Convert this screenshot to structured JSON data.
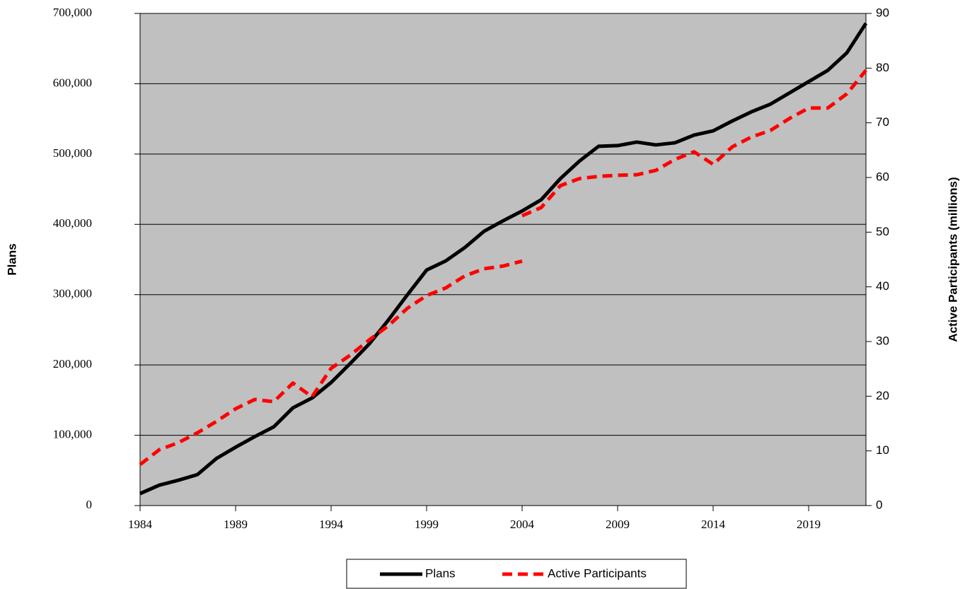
{
  "chart_data": {
    "type": "line",
    "y_label": "Plans",
    "y2_label": "Active Participants (millions)",
    "x": [
      1984,
      1985,
      1986,
      1987,
      1988,
      1989,
      1990,
      1991,
      1992,
      1993,
      1994,
      1995,
      1996,
      1997,
      1998,
      1999,
      2000,
      2001,
      2002,
      2003,
      2004,
      2005,
      2006,
      2007,
      2008,
      2009,
      2010,
      2011,
      2012,
      2013,
      2014,
      2015,
      2016,
      2017,
      2018,
      2019,
      2020,
      2021,
      2022
    ],
    "series": [
      {
        "name": "Plans",
        "color": "#000000",
        "dashed": false,
        "axis": "y",
        "values": [
          17000,
          29000,
          36000,
          44000,
          67000,
          83000,
          98000,
          112000,
          139000,
          153000,
          175000,
          202000,
          230000,
          264000,
          300000,
          335000,
          348000,
          367000,
          390000,
          405000,
          419000,
          435000,
          465000,
          490000,
          511000,
          512000,
          517000,
          513000,
          516000,
          527000,
          533000,
          547000,
          560000,
          571000,
          587000,
          603000,
          619000,
          644000,
          686000
        ]
      },
      {
        "name": "Active Participants",
        "color": "#ff0000",
        "dashed": true,
        "axis": "y2",
        "x": [
          1984,
          1985,
          1986,
          1987,
          1988,
          1989,
          1990,
          1991,
          1992,
          1993,
          1994,
          1995,
          1996,
          1997,
          1998,
          1999,
          2000,
          2001,
          2002,
          2003,
          2004,
          null,
          2004,
          2005,
          2006,
          2007,
          2008,
          2009,
          2010,
          2011,
          2012,
          2013,
          2014,
          2015,
          2016,
          2017,
          2018,
          2019,
          2020,
          2021,
          2022
        ],
        "values": [
          7.5,
          10.2,
          11.5,
          13.3,
          15.4,
          17.7,
          19.4,
          19.0,
          22.4,
          19.9,
          25.1,
          27.5,
          30.3,
          32.9,
          36.1,
          38.4,
          39.8,
          42.0,
          43.3,
          43.8,
          44.7,
          null,
          53.0,
          54.5,
          58.5,
          59.8,
          60.2,
          60.4,
          60.5,
          61.3,
          63.3,
          64.7,
          62.4,
          65.6,
          67.4,
          68.6,
          70.8,
          72.7,
          72.7,
          75.3,
          79.6
        ]
      }
    ],
    "xlim": [
      1984,
      2022
    ],
    "xticks": [
      1984,
      1989,
      1994,
      1999,
      2004,
      2009,
      2014,
      2019
    ],
    "ylim": [
      0,
      700000
    ],
    "yticks": [
      0,
      {
        "value": 100000,
        "label": "100,000"
      },
      {
        "value": 200000,
        "label": "200,000"
      },
      {
        "value": 300000,
        "label": "300,000"
      },
      {
        "value": 400000,
        "label": "400,000"
      },
      {
        "value": 500000,
        "label": "500,000"
      },
      {
        "value": 600000,
        "label": "600,000"
      },
      {
        "value": 700000,
        "label": "700,000"
      }
    ],
    "y2lim": [
      0,
      90
    ],
    "y2ticks": [
      0,
      10,
      20,
      30,
      40,
      50,
      60,
      70,
      80,
      90
    ],
    "grid": true,
    "plot_background": "#c0c0c0",
    "legend": "bottom"
  }
}
